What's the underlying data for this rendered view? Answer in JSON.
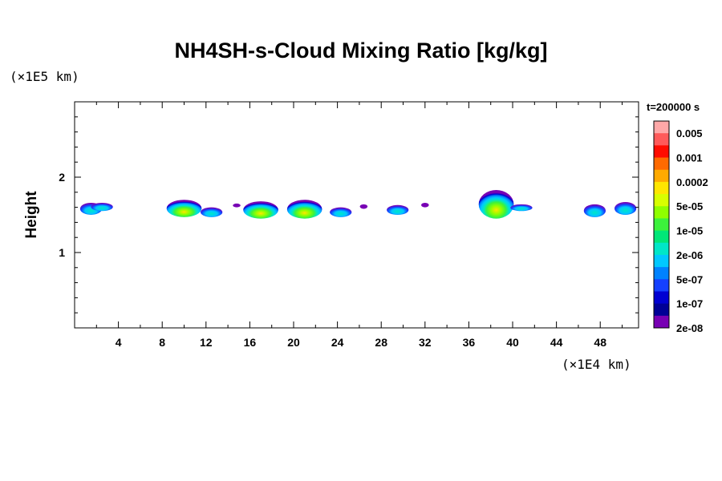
{
  "chart_data": {
    "type": "heatmap",
    "title": "NH4SH-s-Cloud Mixing Ratio [kg/kg]",
    "xlabel": "",
    "x_unit": "(×1E4 km)",
    "ylabel": "Height",
    "y_unit": "(×1E5 km)",
    "time_label": "t=200000 s",
    "xlim": [
      0,
      51.5
    ],
    "ylim": [
      0,
      3.0
    ],
    "x_ticks": [
      4,
      8,
      12,
      16,
      20,
      24,
      28,
      32,
      36,
      40,
      44,
      48
    ],
    "y_ticks": [
      1,
      2
    ],
    "x_minor_step": 2,
    "y_minor_step": 0.2,
    "colorbar": {
      "labels": [
        "0.005",
        "0.001",
        "0.0002",
        "5e-05",
        "1e-05",
        "2e-06",
        "5e-07",
        "1e-07",
        "2e-08"
      ],
      "colors": [
        "#ffa8a8",
        "#ff5a5a",
        "#ff0c00",
        "#ff6a00",
        "#ffaa00",
        "#ffe600",
        "#d8ff00",
        "#8fff00",
        "#3cf23c",
        "#00e678",
        "#00e6c8",
        "#00c8ff",
        "#0082ff",
        "#1440ff",
        "#0000d2",
        "#000096",
        "#7800b4"
      ]
    },
    "clouds": [
      {
        "x": 1.5,
        "y_bottom": 1.5,
        "y_top": 1.66,
        "peak": "5e-07"
      },
      {
        "x": 2.5,
        "y_bottom": 1.55,
        "y_top": 1.66,
        "peak": "1e-07"
      },
      {
        "x": 10.0,
        "y_bottom": 1.47,
        "y_top": 1.7,
        "peak": "1e-05"
      },
      {
        "x": 12.5,
        "y_bottom": 1.47,
        "y_top": 1.6,
        "peak": "2e-06"
      },
      {
        "x": 14.8,
        "y_bottom": 1.6,
        "y_top": 1.65,
        "peak": "2e-08"
      },
      {
        "x": 17.0,
        "y_bottom": 1.45,
        "y_top": 1.68,
        "peak": "1e-05"
      },
      {
        "x": 21.0,
        "y_bottom": 1.45,
        "y_top": 1.7,
        "peak": "5e-05"
      },
      {
        "x": 24.3,
        "y_bottom": 1.47,
        "y_top": 1.6,
        "peak": "2e-06"
      },
      {
        "x": 26.4,
        "y_bottom": 1.58,
        "y_top": 1.64,
        "peak": "2e-08"
      },
      {
        "x": 29.5,
        "y_bottom": 1.5,
        "y_top": 1.63,
        "peak": "5e-07"
      },
      {
        "x": 32.0,
        "y_bottom": 1.6,
        "y_top": 1.66,
        "peak": "2e-08"
      },
      {
        "x": 38.5,
        "y_bottom": 1.45,
        "y_top": 1.83,
        "peak": "5e-05"
      },
      {
        "x": 40.8,
        "y_bottom": 1.55,
        "y_top": 1.64,
        "peak": "1e-07"
      },
      {
        "x": 47.5,
        "y_bottom": 1.47,
        "y_top": 1.64,
        "peak": "2e-06"
      },
      {
        "x": 50.3,
        "y_bottom": 1.5,
        "y_top": 1.67,
        "peak": "5e-07"
      }
    ]
  }
}
